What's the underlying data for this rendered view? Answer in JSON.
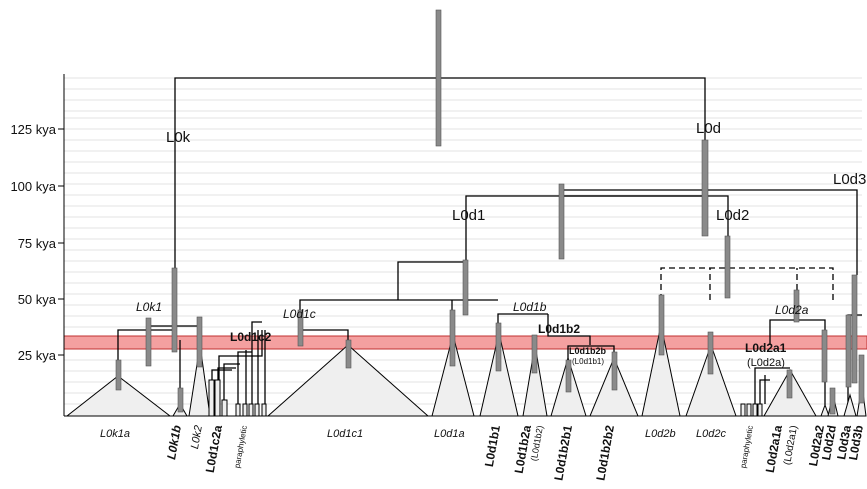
{
  "axis": {
    "ticks": [
      "125 kya",
      "100 kya",
      "75 kya",
      "50 kya",
      "25 kya"
    ]
  },
  "clades": {
    "L0k": "L0k",
    "L0d": "L0d",
    "L0d3": "L0d3",
    "L0d1": "L0d1",
    "L0d2": "L0d2",
    "L0k1": "L0k1",
    "L0d1c": "L0d1c",
    "L0d1c2": "L0d1c2",
    "L0d1b": "L0d1b",
    "L0d1b2": "L0d1b2",
    "L0d1b2b": "L0d1b2b",
    "L0d1b2b_alt": "(L0d1b1)",
    "L0d2a": "L0d2a",
    "L0d2a1": "L0d2a1",
    "L0d2a1_alt": "(L0d2a)"
  },
  "leaves": {
    "L0k1a": "L0k1a",
    "L0k1b": "L0k1b",
    "L0k2": "L0k2",
    "L0d1c2a": "L0d1c2a",
    "paraphyletic1": "paraphyletic",
    "L0d1c1": "L0d1c1",
    "L0d1a": "L0d1a",
    "L0d1b1": "L0d1b1",
    "L0d1b2a": "L0d1b2a",
    "L0d1b2a_alt": "(L0d1b2)",
    "L0d1b2b1": "L0d1b2b1",
    "L0d1b2b2": "L0d1b2b2",
    "L0d2b": "L0d2b",
    "L0d2c": "L0d2c",
    "paraphyletic2": "paraphyletic",
    "L0d2a1a": "L0d2a1a",
    "L0d2a1a_alt": "(L0d2a1)",
    "L0d2a2": "L0d2a2",
    "L0d2d": "L0d2d",
    "L0d3a": "L0d3a",
    "L0d3b": "L0d3b"
  },
  "colors": {
    "highlight_band": "#f4a0a0",
    "triangle_fill": "#efefef",
    "confidence_bar": "#8a8a8a"
  }
}
